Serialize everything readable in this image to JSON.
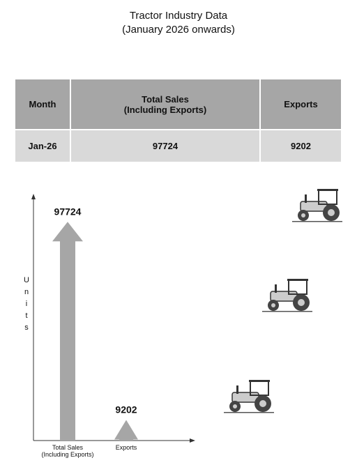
{
  "title": "Tractor Industry Data",
  "subtitle": "(January 2026 onwards)",
  "table": {
    "header": [
      "Month",
      "Total Sales\n(Including Exports)",
      "Exports"
    ],
    "rows": [
      [
        "Jan-26",
        "97724",
        "9202"
      ]
    ]
  },
  "chart_data": {
    "type": "arrow-bar",
    "y_label": "Units",
    "categories": [
      "Total Sales\n(Including Exports)",
      "Exports"
    ],
    "values": [
      97724,
      9202
    ],
    "color": "#a6a6a6",
    "ylim": [
      0,
      100000
    ]
  }
}
